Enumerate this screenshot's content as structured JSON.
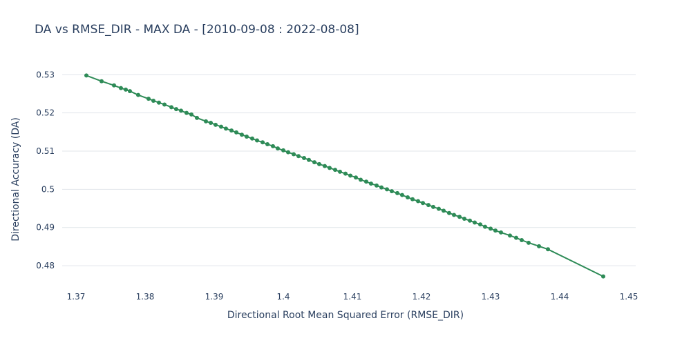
{
  "chart_data": {
    "type": "scatter",
    "title": "DA vs RMSE_DIR - MAX DA - [2010-09-08 : 2022-08-08]",
    "xlabel": "Directional Root Mean Squared Error (RMSE_DIR)",
    "ylabel": "Directional Accuracy (DA)",
    "xlim": [
      1.37,
      1.45
    ],
    "ylim": [
      0.4755,
      0.5315
    ],
    "x_ticks": [
      1.37,
      1.38,
      1.39,
      1.4,
      1.41,
      1.42,
      1.43,
      1.44,
      1.45
    ],
    "x_tick_labels": [
      "1.37",
      "1.38",
      "1.39",
      "1.4",
      "1.41",
      "1.42",
      "1.43",
      "1.44",
      "1.45"
    ],
    "y_ticks": [
      0.48,
      0.49,
      0.5,
      0.51,
      0.52,
      0.53
    ],
    "y_tick_labels": [
      "0.48",
      "0.49",
      "0.5",
      "0.51",
      "0.52",
      "0.53"
    ],
    "grid": "horizontal",
    "color": "#2e8b57",
    "series": [
      {
        "mode": "lines+markers",
        "x": [
          1.3715,
          1.3737,
          1.3755,
          1.3765,
          1.3772,
          1.3778,
          1.379,
          1.3805,
          1.3812,
          1.382,
          1.3828,
          1.3838,
          1.3845,
          1.3852,
          1.386,
          1.3867,
          1.3875,
          1.3888,
          1.3895,
          1.3902,
          1.391,
          1.3917,
          1.3925,
          1.3932,
          1.394,
          1.3947,
          1.3955,
          1.3962,
          1.397,
          1.3977,
          1.3985,
          1.3992,
          1.4,
          1.4007,
          1.4015,
          1.4022,
          1.403,
          1.4037,
          1.4045,
          1.4052,
          1.406,
          1.4067,
          1.4075,
          1.4082,
          1.409,
          1.4097,
          1.4105,
          1.4112,
          1.412,
          1.4127,
          1.4135,
          1.4142,
          1.415,
          1.4157,
          1.4165,
          1.4172,
          1.418,
          1.4187,
          1.4195,
          1.4202,
          1.421,
          1.4217,
          1.4225,
          1.4232,
          1.424,
          1.4247,
          1.4255,
          1.4262,
          1.427,
          1.4277,
          1.4285,
          1.4292,
          1.43,
          1.4307,
          1.4315,
          1.4328,
          1.4337,
          1.4345,
          1.4355,
          1.437,
          1.4383,
          1.4463
        ],
        "y": [
          0.5298,
          0.5283,
          0.5272,
          0.5265,
          0.5261,
          0.5257,
          0.5247,
          0.5237,
          0.5232,
          0.5227,
          0.5222,
          0.5215,
          0.521,
          0.5206,
          0.52,
          0.5196,
          0.5187,
          0.5178,
          0.5174,
          0.5169,
          0.5164,
          0.5159,
          0.5154,
          0.5149,
          0.5143,
          0.5138,
          0.5133,
          0.5128,
          0.5123,
          0.5118,
          0.5113,
          0.5107,
          0.5102,
          0.5097,
          0.5092,
          0.5087,
          0.5082,
          0.5077,
          0.5071,
          0.5066,
          0.5061,
          0.5056,
          0.5051,
          0.5046,
          0.5041,
          0.5036,
          0.5031,
          0.5025,
          0.502,
          0.5015,
          0.501,
          0.5005,
          0.5,
          0.4995,
          0.499,
          0.4985,
          0.4979,
          0.4974,
          0.4969,
          0.4964,
          0.4959,
          0.4954,
          0.4949,
          0.4944,
          0.4938,
          0.4933,
          0.4928,
          0.4923,
          0.4918,
          0.4913,
          0.4908,
          0.4902,
          0.4897,
          0.4892,
          0.4887,
          0.4879,
          0.4873,
          0.4867,
          0.486,
          0.4851,
          0.4843,
          0.4772
        ]
      }
    ]
  }
}
